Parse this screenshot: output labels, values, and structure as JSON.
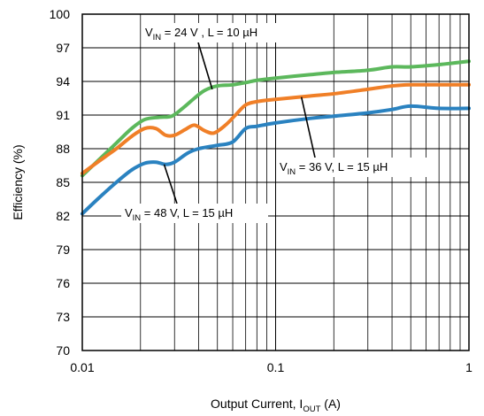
{
  "chart_data": {
    "type": "line",
    "title": "",
    "xlabel": {
      "main": "Output Current, I",
      "sub": "OUT",
      "tail": " (A)"
    },
    "ylabel": "Efficiency (%)",
    "xscale": "log",
    "xlim": [
      0.01,
      1
    ],
    "ylim": [
      70,
      100
    ],
    "grid": true,
    "x_ticks": [
      {
        "value": 0.01,
        "label": "0.01"
      },
      {
        "value": 0.1,
        "label": "0.1"
      },
      {
        "value": 1,
        "label": "1"
      }
    ],
    "y_ticks": [
      {
        "value": 100,
        "label": "100"
      },
      {
        "value": 97,
        "label": "97"
      },
      {
        "value": 94,
        "label": "94"
      },
      {
        "value": 91,
        "label": "91"
      },
      {
        "value": 88,
        "label": "88"
      },
      {
        "value": 85,
        "label": "85"
      },
      {
        "value": 82,
        "label": "82"
      },
      {
        "value": 79,
        "label": "79"
      },
      {
        "value": 76,
        "label": "76"
      },
      {
        "value": 73,
        "label": "73"
      },
      {
        "value": 70,
        "label": "70"
      }
    ],
    "series": [
      {
        "color": "#5cb85c",
        "x": [
          0.01,
          0.012,
          0.015,
          0.018,
          0.021,
          0.025,
          0.029,
          0.033,
          0.038,
          0.043,
          0.05,
          0.06,
          0.07,
          0.08,
          0.1,
          0.15,
          0.2,
          0.3,
          0.4,
          0.5,
          0.7,
          1.0
        ],
        "y": [
          85.6,
          86.9,
          88.5,
          89.8,
          90.6,
          90.8,
          90.9,
          91.6,
          92.5,
          93.2,
          93.6,
          93.7,
          93.9,
          94.1,
          94.3,
          94.6,
          94.8,
          95.0,
          95.3,
          95.3,
          95.5,
          95.8
        ]
      },
      {
        "color": "#f07f27",
        "x": [
          0.01,
          0.012,
          0.015,
          0.018,
          0.021,
          0.024,
          0.027,
          0.03,
          0.034,
          0.038,
          0.043,
          0.048,
          0.055,
          0.062,
          0.07,
          0.08,
          0.1,
          0.15,
          0.2,
          0.3,
          0.4,
          0.5,
          0.7,
          1.0
        ],
        "y": [
          85.8,
          86.8,
          88.0,
          89.1,
          89.8,
          89.8,
          89.2,
          89.2,
          89.7,
          90.1,
          89.6,
          89.4,
          90.1,
          91.0,
          91.9,
          92.2,
          92.4,
          92.7,
          92.9,
          93.3,
          93.6,
          93.7,
          93.7,
          93.7
        ]
      },
      {
        "color": "#2a82c0",
        "x": [
          0.01,
          0.012,
          0.015,
          0.018,
          0.021,
          0.024,
          0.027,
          0.03,
          0.035,
          0.04,
          0.05,
          0.06,
          0.07,
          0.08,
          0.1,
          0.15,
          0.2,
          0.3,
          0.4,
          0.5,
          0.7,
          1.0
        ],
        "y": [
          82.2,
          83.5,
          85.0,
          86.1,
          86.7,
          86.8,
          86.6,
          86.8,
          87.6,
          88.0,
          88.3,
          88.6,
          89.8,
          90.0,
          90.3,
          90.7,
          90.9,
          91.2,
          91.5,
          91.8,
          91.6,
          91.6
        ]
      }
    ],
    "annotations": [
      {
        "main": "V",
        "sub": "IN",
        "tail": " = 24 V , L = 10 µH",
        "target": {
          "x": 0.047,
          "y": 93.3
        }
      },
      {
        "main": "V",
        "sub": "IN",
        "tail": " = 36 V, L = 15 µH",
        "target": {
          "x": 0.136,
          "y": 92.6
        }
      },
      {
        "main": "V",
        "sub": "IN",
        "tail": " = 48 V, L = 15 µH",
        "target": {
          "x": 0.0265,
          "y": 86.6
        }
      }
    ]
  }
}
